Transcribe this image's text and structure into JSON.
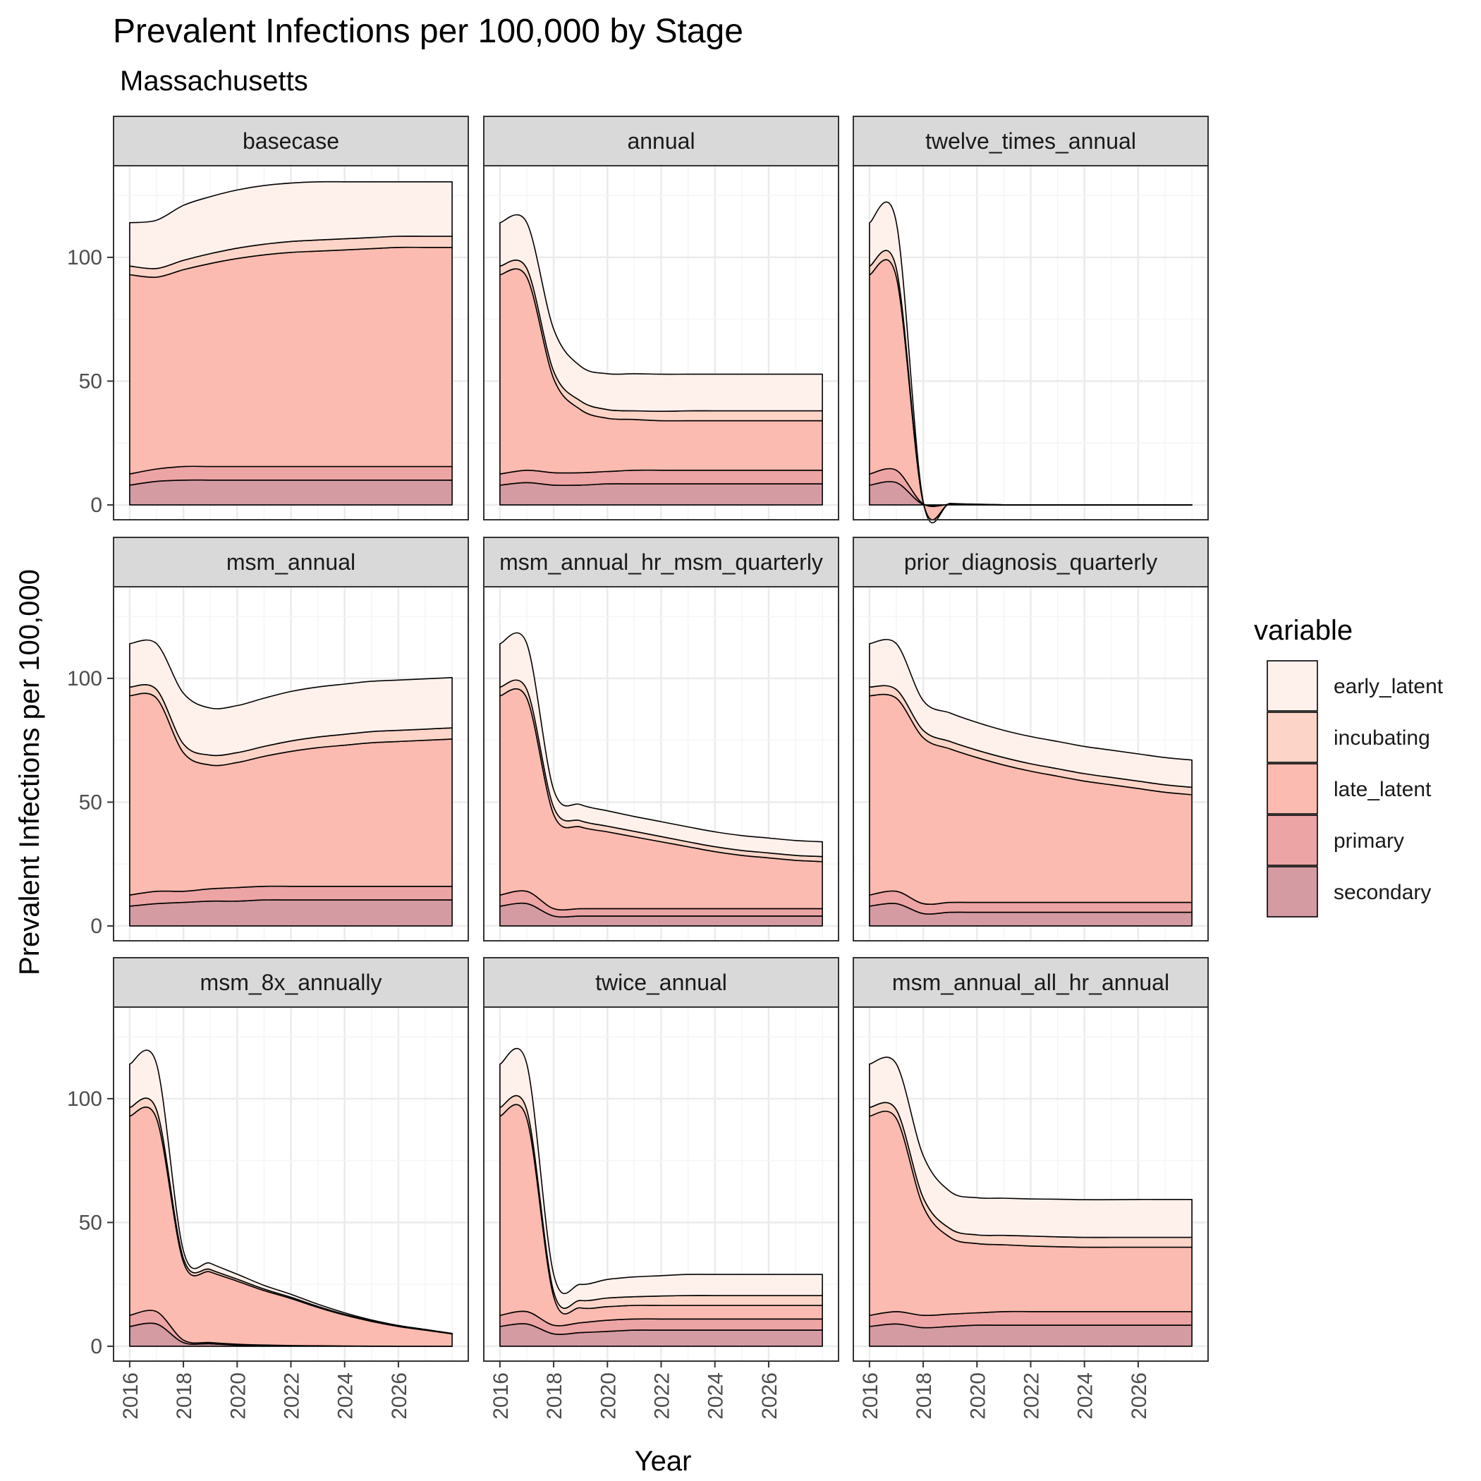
{
  "chart_data": {
    "type": "area",
    "stacked": true,
    "title": "Prevalent Infections per 100,000 by Stage",
    "subtitle": "Massachusetts",
    "xlabel": "Year",
    "ylabel": "Prevalent Infections per 100,000",
    "xlim": [
      2015.4,
      2028.6
    ],
    "ylim": [
      -6,
      137
    ],
    "x_ticks": [
      2016,
      2018,
      2020,
      2022,
      2024,
      2026
    ],
    "y_ticks": [
      0,
      50,
      100
    ],
    "grid": true,
    "legend": {
      "title": "variable",
      "position": "right",
      "entries": [
        "early_latent",
        "incubating",
        "late_latent",
        "primary",
        "secondary"
      ]
    },
    "colors": {
      "secondary": "#d49ba2",
      "primary": "#eda4a4",
      "late_latent": "#fcbbb0",
      "incubating": "#fcd5c8",
      "early_latent": "#fef1ec",
      "strip_bg": "#d9d9d9",
      "grid_major": "#ebebeb",
      "grid_minor": "#f5f5f5"
    },
    "stack_order": [
      "secondary",
      "primary",
      "late_latent",
      "incubating",
      "early_latent"
    ],
    "x": [
      2016,
      2017,
      2018,
      2019,
      2020,
      2021,
      2022,
      2023,
      2024,
      2025,
      2026,
      2027,
      2028
    ],
    "panels": [
      {
        "name": "basecase",
        "series": {
          "secondary": [
            8,
            9.5,
            10,
            10,
            10,
            10,
            10,
            10,
            10,
            10,
            10,
            10,
            10
          ],
          "primary": [
            4.5,
            5,
            5.5,
            5.5,
            5.5,
            5.5,
            5.5,
            5.5,
            5.5,
            5.5,
            5.5,
            5.5,
            5.5
          ],
          "late_latent": [
            80.5,
            77.5,
            79.5,
            82,
            84,
            85.5,
            86.5,
            87,
            87.5,
            88,
            88.5,
            88.5,
            88.5
          ],
          "incubating": [
            3.5,
            3.5,
            3.8,
            4,
            4.2,
            4.3,
            4.4,
            4.5,
            4.5,
            4.5,
            4.5,
            4.5,
            4.5
          ],
          "early_latent": [
            17.5,
            19.5,
            22.2,
            23,
            23.5,
            23.7,
            23.6,
            23.5,
            23,
            22.5,
            22,
            22,
            22
          ]
        }
      },
      {
        "name": "annual",
        "series": {
          "secondary": [
            8,
            9,
            8,
            8,
            8.5,
            8.5,
            8.5,
            8.5,
            8.5,
            8.5,
            8.5,
            8.5,
            8.5
          ],
          "primary": [
            4.5,
            5,
            5,
            5,
            5,
            5.5,
            5.5,
            5.5,
            5.5,
            5.5,
            5.5,
            5.5,
            5.5
          ],
          "late_latent": [
            80.5,
            78,
            38,
            25.5,
            21.5,
            20.5,
            20,
            20,
            20,
            20,
            20,
            20,
            20
          ],
          "incubating": [
            3.5,
            3.5,
            3,
            3.5,
            3.5,
            3.5,
            3.8,
            4,
            4,
            4,
            4,
            4,
            4
          ],
          "early_latent": [
            17.5,
            18.5,
            17,
            14,
            14.5,
            15,
            15,
            14.8,
            14.8,
            14.8,
            14.8,
            14.8,
            14.8
          ]
        }
      },
      {
        "name": "twelve_times_annual",
        "series": {
          "secondary": [
            8,
            9,
            0.2,
            0.1,
            0.05,
            0,
            0,
            0,
            0,
            0,
            0,
            0,
            0
          ],
          "primary": [
            4.5,
            5,
            0.2,
            0.1,
            0.05,
            0,
            0,
            0,
            0,
            0,
            0,
            0,
            0
          ],
          "late_latent": [
            80.5,
            78,
            0.5,
            0.2,
            0.1,
            0.05,
            0,
            0,
            0,
            0,
            0,
            0,
            0
          ],
          "incubating": [
            3.5,
            3.5,
            0.2,
            0.1,
            0.05,
            0,
            0,
            0,
            0,
            0,
            0,
            0,
            0
          ],
          "early_latent": [
            17.5,
            18.5,
            0.2,
            0.1,
            0.05,
            0,
            0,
            0,
            0,
            0,
            0,
            0,
            0
          ]
        }
      },
      {
        "name": "msm_annual",
        "series": {
          "secondary": [
            8,
            9,
            9.5,
            10,
            10,
            10.5,
            10.5,
            10.5,
            10.5,
            10.5,
            10.5,
            10.5,
            10.5
          ],
          "primary": [
            4.5,
            5,
            4.5,
            5,
            5.5,
            5.5,
            5.5,
            5.5,
            5.5,
            5.5,
            5.5,
            5.5,
            5.5
          ],
          "late_latent": [
            80.5,
            78,
            56,
            50,
            50.5,
            52.5,
            54.5,
            56,
            57,
            58,
            58.5,
            59,
            59.5
          ],
          "incubating": [
            3.5,
            3.5,
            3.5,
            4,
            4,
            4,
            4.2,
            4.3,
            4.4,
            4.5,
            4.5,
            4.5,
            4.5
          ],
          "early_latent": [
            17.5,
            18.5,
            20.5,
            19,
            19,
            19.5,
            20,
            20.2,
            20.3,
            20.3,
            20.3,
            20.3,
            20.3
          ]
        }
      },
      {
        "name": "msm_annual_hr_msm_quarterly",
        "series": {
          "secondary": [
            8,
            9,
            4,
            4,
            4,
            4,
            4,
            4,
            4,
            4,
            4,
            4,
            4
          ],
          "primary": [
            4.5,
            5,
            3,
            3,
            3,
            3,
            3,
            3,
            3,
            3,
            3,
            3,
            3
          ],
          "late_latent": [
            80.5,
            78,
            38,
            33,
            31,
            29,
            27,
            25,
            23,
            21.5,
            20.5,
            19.5,
            19
          ],
          "incubating": [
            3.5,
            3.5,
            3,
            2.5,
            2.3,
            2.2,
            2.1,
            2,
            2,
            2,
            2,
            2,
            2
          ],
          "early_latent": [
            17.5,
            18.5,
            7,
            6.5,
            6.2,
            6,
            6,
            6,
            6,
            6,
            6,
            6,
            6
          ]
        }
      },
      {
        "name": "prior_diagnosis_quarterly",
        "series": {
          "secondary": [
            8,
            9,
            5,
            5.5,
            5.5,
            5.5,
            5.5,
            5.5,
            5.5,
            5.5,
            5.5,
            5.5,
            5.5
          ],
          "primary": [
            4.5,
            5,
            4,
            4,
            4,
            4,
            4,
            4,
            4,
            4,
            4,
            4,
            4
          ],
          "late_latent": [
            80.5,
            78,
            67,
            62,
            58.5,
            55.5,
            53,
            51,
            49,
            47.5,
            46,
            44.5,
            43.5
          ],
          "incubating": [
            3.5,
            3.5,
            3,
            3,
            3,
            3,
            3,
            3,
            3,
            3,
            3,
            3,
            3
          ],
          "early_latent": [
            17.5,
            18.5,
            12,
            11.5,
            11.2,
            11,
            11,
            11,
            11,
            11,
            11,
            11,
            11
          ]
        }
      },
      {
        "name": "msm_8x_annually",
        "series": {
          "secondary": [
            8,
            9,
            1.5,
            1,
            0.5,
            0.3,
            0.2,
            0.1,
            0.1,
            0.05,
            0,
            0,
            0
          ],
          "primary": [
            4.5,
            5,
            1,
            0.5,
            0.3,
            0.2,
            0.1,
            0.1,
            0,
            0,
            0,
            0,
            0
          ],
          "late_latent": [
            80.5,
            78,
            31.5,
            28.5,
            25.5,
            22,
            19,
            15.5,
            12.5,
            10,
            8,
            6.5,
            5
          ],
          "incubating": [
            3.5,
            3.5,
            1.5,
            1,
            0.8,
            0.6,
            0.5,
            0.4,
            0.3,
            0.2,
            0.1,
            0.1,
            0.1
          ],
          "early_latent": [
            17.5,
            18.5,
            3,
            2.5,
            2,
            1.5,
            1.2,
            0.9,
            0.6,
            0.4,
            0.3,
            0.2,
            0.1
          ]
        }
      },
      {
        "name": "twice_annual",
        "series": {
          "secondary": [
            8,
            9,
            5,
            5.5,
            6,
            6.5,
            6.5,
            6.5,
            6.5,
            6.5,
            6.5,
            6.5,
            6.5
          ],
          "primary": [
            4.5,
            5,
            3.5,
            4,
            4.5,
            4.5,
            4.5,
            4.5,
            4.5,
            4.5,
            4.5,
            4.5,
            4.5
          ],
          "late_latent": [
            80.5,
            78,
            11.5,
            6,
            5.5,
            5.5,
            5.5,
            5.5,
            5.5,
            5.5,
            5.5,
            5.5,
            5.5
          ],
          "incubating": [
            3.5,
            3.5,
            2,
            3,
            3.5,
            3.5,
            3.8,
            4,
            4,
            4,
            4,
            4,
            4
          ],
          "early_latent": [
            17.5,
            18.5,
            7,
            6.5,
            7.5,
            8,
            8.2,
            8.5,
            8.5,
            8.5,
            8.5,
            8.5,
            8.5
          ]
        }
      },
      {
        "name": "msm_annual_all_hr_annual",
        "series": {
          "secondary": [
            8,
            9,
            7.5,
            8,
            8.5,
            8.5,
            8.5,
            8.5,
            8.5,
            8.5,
            8.5,
            8.5,
            8.5
          ],
          "primary": [
            4.5,
            5,
            5,
            5,
            5,
            5.5,
            5.5,
            5.5,
            5.5,
            5.5,
            5.5,
            5.5,
            5.5
          ],
          "late_latent": [
            80.5,
            78,
            44,
            31,
            28,
            27,
            26.5,
            26.2,
            26,
            26,
            26,
            26,
            26
          ],
          "incubating": [
            3.5,
            3.5,
            3.5,
            3.5,
            3.5,
            3.8,
            4,
            4,
            4,
            4,
            4,
            4,
            4
          ],
          "early_latent": [
            17.5,
            18.5,
            17,
            15,
            15,
            15,
            15,
            15.2,
            15.2,
            15.2,
            15.3,
            15.3,
            15.3
          ]
        }
      }
    ]
  }
}
